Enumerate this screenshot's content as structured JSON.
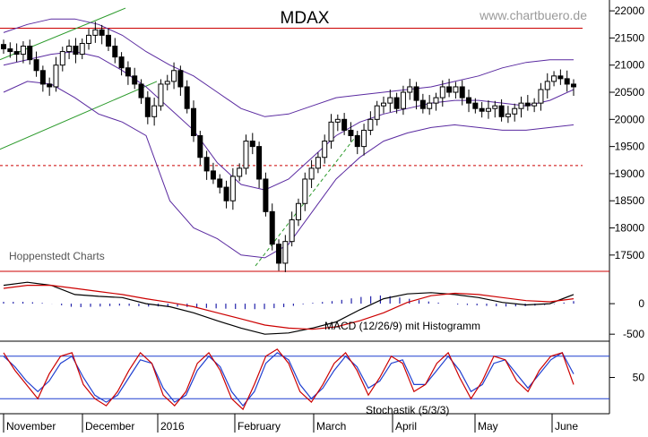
{
  "title": "MDAX",
  "watermark": "www.chartbuero.de",
  "source_label": "Hoppenstedt Charts",
  "macd_label": "MACD (12/26/9) mit Histogramm",
  "stoch_label": "Stochastik (5/3/3)",
  "colors": {
    "background": "#ffffff",
    "candle": "#000000",
    "bollinger": "#5a2aa0",
    "resistance": "#cc0000",
    "support": "#cc0000",
    "uptrend_channel": "#2a9a2a",
    "trend_dashed": "#2a9a2a",
    "macd_line": "#000000",
    "signal_line": "#cc0000",
    "histogram": "#2222aa",
    "stoch_k": "#cc0000",
    "stoch_d": "#1f3fd0",
    "stoch_bands": "#1f3fd0",
    "watermark": "#9a9a9a"
  },
  "chart_data": [
    {
      "type": "candlestick",
      "title": "MDAX",
      "x_tick_labels": [
        "November",
        "December",
        "2016",
        "February",
        "March",
        "April",
        "May",
        "June"
      ],
      "y_tick_labels": [
        "22000",
        "21500",
        "21000",
        "20500",
        "20000",
        "19500",
        "19000",
        "18500",
        "18000",
        "17500"
      ],
      "ylim": [
        17200,
        22200
      ],
      "horizontal_lines": [
        {
          "role": "resistance",
          "value": 21680,
          "style": "solid"
        },
        {
          "role": "support",
          "value": 19150,
          "style": "dashed"
        }
      ],
      "close_series": [
        21300,
        21250,
        21200,
        21350,
        21100,
        20900,
        20650,
        20600,
        21000,
        21250,
        21350,
        21200,
        21400,
        21550,
        21650,
        21550,
        21350,
        21150,
        20950,
        20800,
        20650,
        20400,
        20050,
        20250,
        20650,
        20700,
        20900,
        20600,
        20200,
        19700,
        19300,
        19050,
        18900,
        18750,
        18500,
        18950,
        19100,
        19600,
        19500,
        18900,
        18300,
        17700,
        17350,
        17750,
        18150,
        18450,
        18900,
        19100,
        19300,
        19600,
        19950,
        20000,
        19800,
        19700,
        19500,
        19800,
        20000,
        20250,
        20300,
        20400,
        20200,
        20500,
        20600,
        20350,
        20200,
        20300,
        20400,
        20600,
        20500,
        20600,
        20400,
        20300,
        20200,
        20150,
        20200,
        20250,
        20050,
        20100,
        20200,
        20300,
        20250,
        20300,
        20550,
        20700,
        20800,
        20750,
        20650,
        20600
      ],
      "bollinger_upper": [
        21600,
        21750,
        21850,
        21850,
        21750,
        21550,
        21250,
        21000,
        20800,
        20500,
        20200,
        20050,
        20100,
        20250,
        20400,
        20450,
        20500,
        20550,
        20600,
        20700,
        20800,
        20950,
        21050,
        21100,
        21100
      ],
      "bollinger_middle": [
        21000,
        21100,
        21200,
        21250,
        21150,
        20900,
        20600,
        20200,
        19800,
        19200,
        18800,
        18700,
        18900,
        19300,
        19700,
        19950,
        20100,
        20200,
        20300,
        20350,
        20350,
        20300,
        20250,
        20350,
        20550
      ],
      "bollinger_lower": [
        20500,
        20700,
        20650,
        20400,
        20100,
        19950,
        19700,
        18500,
        18000,
        17800,
        17500,
        17450,
        17700,
        18300,
        18900,
        19300,
        19600,
        19750,
        19850,
        19900,
        19850,
        19800,
        19800,
        19850,
        19900
      ]
    },
    {
      "type": "line",
      "title": "MACD (12/26/9) mit Histogramm",
      "y_tick_labels": [
        "0",
        "-500"
      ],
      "ylim": [
        -600,
        500
      ],
      "series": [
        {
          "role": "macd",
          "values": [
            300,
            350,
            300,
            150,
            120,
            100,
            0,
            -50,
            -150,
            -280,
            -400,
            -500,
            -480,
            -400,
            -300,
            -100,
            80,
            160,
            180,
            150,
            100,
            20,
            -20,
            0,
            150
          ]
        },
        {
          "role": "signal",
          "values": [
            250,
            300,
            300,
            250,
            200,
            150,
            80,
            20,
            -50,
            -150,
            -250,
            -350,
            -400,
            -420,
            -380,
            -280,
            -150,
            20,
            130,
            170,
            150,
            100,
            50,
            30,
            80
          ]
        }
      ]
    },
    {
      "type": "line",
      "title": "Stochastik (5/3/3)",
      "y_tick_labels": [
        "50"
      ],
      "ylim": [
        0,
        100
      ],
      "reference_lines": [
        80,
        20
      ],
      "series": [
        {
          "role": "k",
          "values": [
            85,
            60,
            40,
            20,
            55,
            80,
            85,
            40,
            20,
            10,
            30,
            60,
            85,
            70,
            25,
            10,
            30,
            70,
            85,
            60,
            20,
            5,
            40,
            80,
            90,
            70,
            30,
            15,
            40,
            70,
            85,
            60,
            25,
            50,
            80,
            70,
            30,
            40,
            70,
            85,
            50,
            20,
            45,
            80,
            75,
            45,
            30,
            60,
            80,
            85,
            40
          ]
        },
        {
          "role": "d",
          "values": [
            80,
            65,
            45,
            30,
            45,
            70,
            80,
            50,
            25,
            15,
            25,
            50,
            75,
            70,
            35,
            15,
            25,
            60,
            80,
            65,
            30,
            10,
            30,
            70,
            85,
            75,
            40,
            20,
            35,
            60,
            80,
            65,
            35,
            45,
            70,
            75,
            40,
            40,
            60,
            80,
            60,
            30,
            40,
            70,
            75,
            55,
            35,
            55,
            75,
            85,
            55
          ]
        }
      ]
    }
  ]
}
